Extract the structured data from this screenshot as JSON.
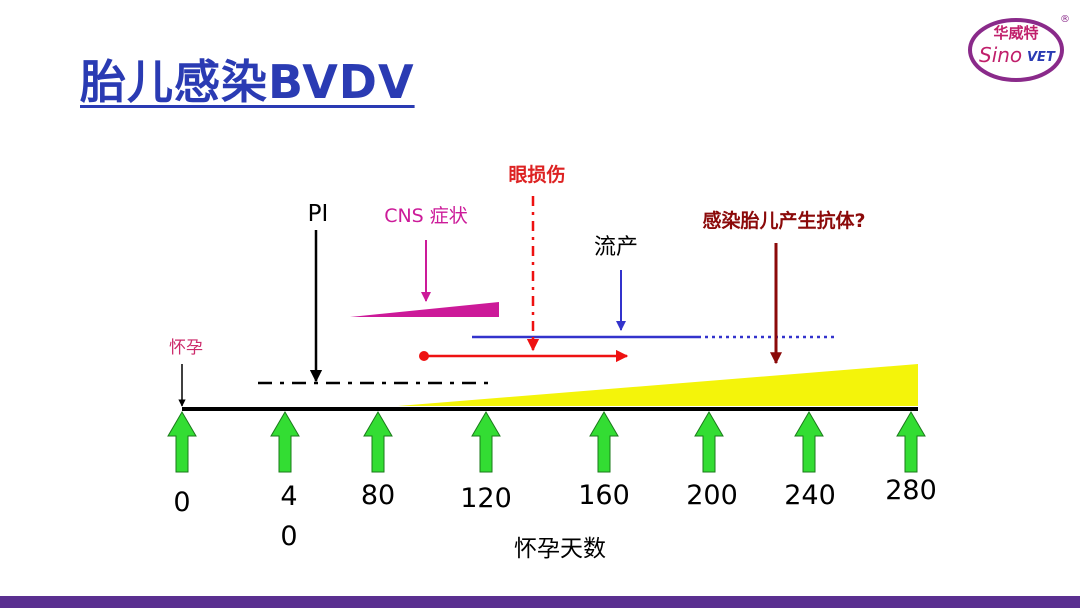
{
  "title": "胎儿感染BVDV",
  "logo": {
    "cn": "华威特",
    "en_left": "Sino",
    "en_right": "VET",
    "mark": "®",
    "ring_color": "#8a2a8a",
    "text_color": "#c01f6b"
  },
  "labels": {
    "pregnancy": "怀孕",
    "pi": "PI",
    "cns": "CNS 症状",
    "eye_damage": "眼损伤",
    "abortion": "流产",
    "antibody": "感染胎儿产生抗体?",
    "axis_title": "怀孕天数"
  },
  "ticks": [
    {
      "id": "0",
      "line1": "0",
      "line2": ""
    },
    {
      "id": "40",
      "line1": "4",
      "line2": "0"
    },
    {
      "id": "80",
      "line1": "80",
      "line2": ""
    },
    {
      "id": "120",
      "line1": "120",
      "line2": ""
    },
    {
      "id": "160",
      "line1": "160",
      "line2": ""
    },
    {
      "id": "200",
      "line1": "200",
      "line2": ""
    },
    {
      "id": "240",
      "line1": "240",
      "line2": ""
    },
    {
      "id": "280",
      "line1": "280",
      "line2": ""
    }
  ],
  "colors": {
    "axis": "#000000",
    "tick_arrow": "#33dd33",
    "tick_arrow_stroke": "#1a7a1a",
    "pregnancy": "#cc2a6a",
    "cns": "#cc1a99",
    "eye": "#ee1111",
    "eye_label": "#dd2222",
    "abortion": "#3333cc",
    "antibody": "#8b0a0a",
    "yellow": "#f4f40a"
  }
}
